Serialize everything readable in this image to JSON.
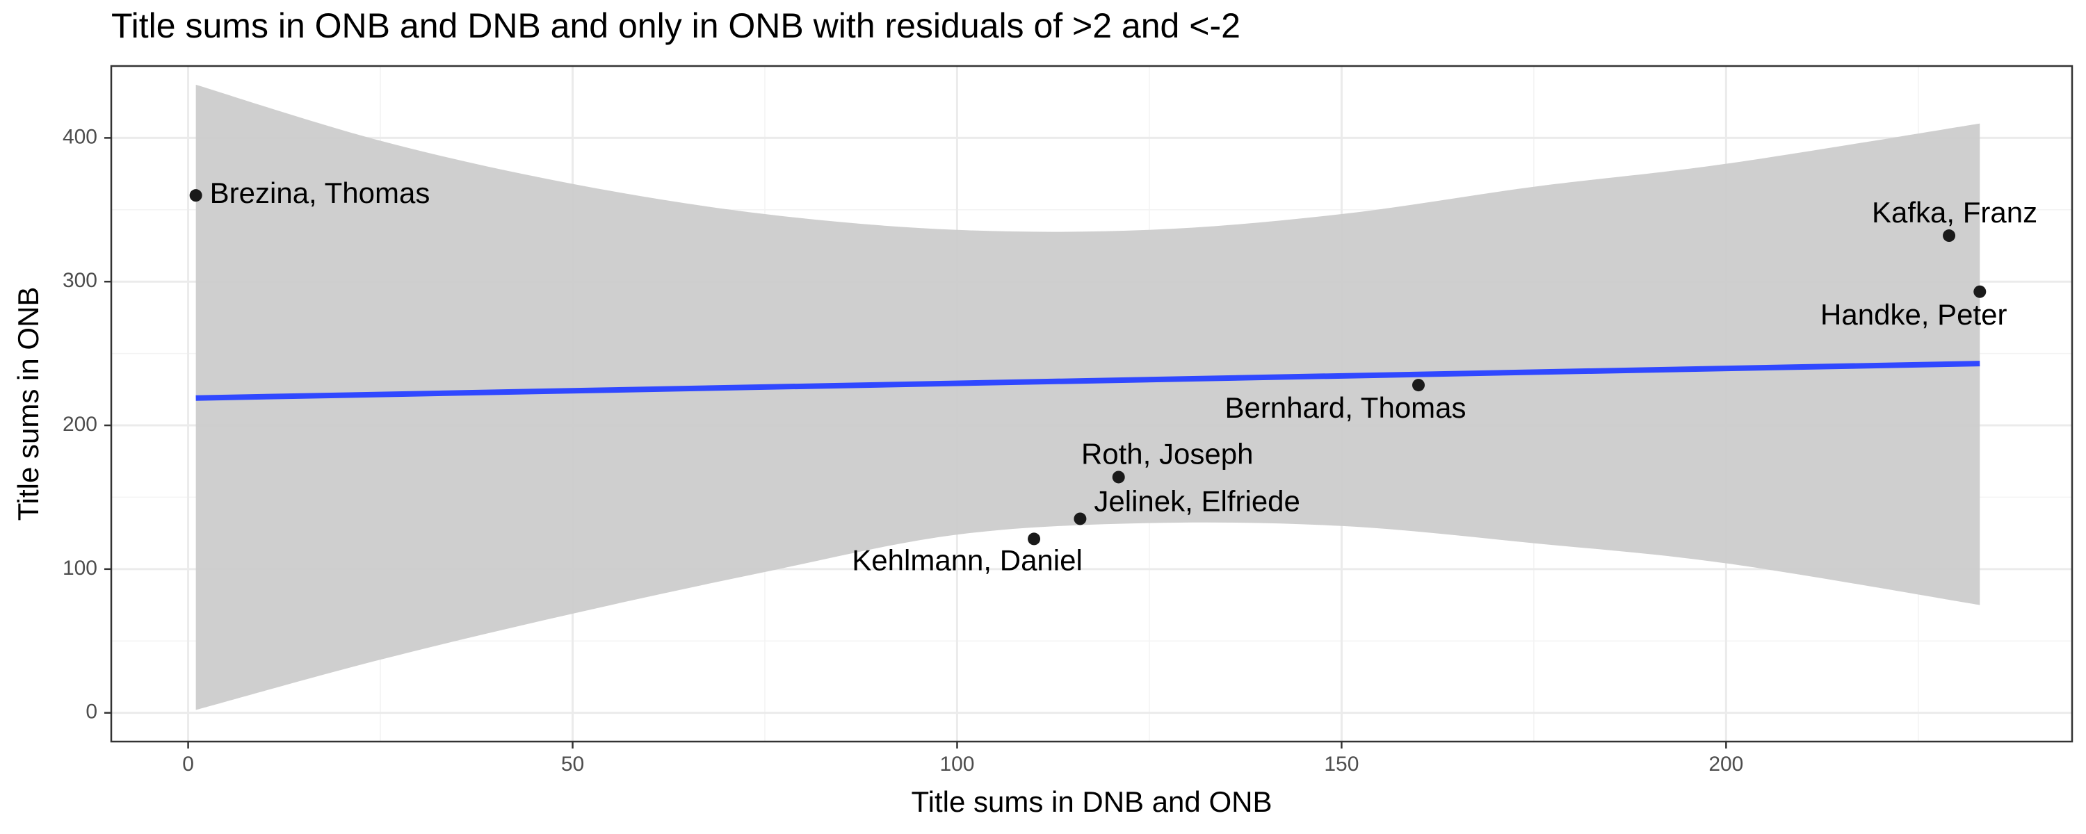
{
  "chart_data": {
    "type": "scatter",
    "title": "Title sums in ONB and DNB and only in ONB with residuals of >2 and <-2",
    "xlabel": "Title sums in DNB and ONB",
    "ylabel": "Title sums in ONB",
    "xlim": [
      -10,
      245
    ],
    "ylim": [
      -20,
      450
    ],
    "x_ticks": [
      0,
      50,
      100,
      150,
      200
    ],
    "y_ticks": [
      0,
      100,
      200,
      300,
      400
    ],
    "grid": true,
    "points": [
      {
        "label": "Brezina, Thomas",
        "x": 1,
        "y": 360
      },
      {
        "label": "Kafka, Franz",
        "x": 229,
        "y": 332
      },
      {
        "label": "Handke, Peter",
        "x": 233,
        "y": 293
      },
      {
        "label": "Bernhard, Thomas",
        "x": 160,
        "y": 228
      },
      {
        "label": "Roth, Joseph",
        "x": 121,
        "y": 164
      },
      {
        "label": "Jelinek, Elfriede",
        "x": 116,
        "y": 135
      },
      {
        "label": "Kehlmann, Daniel",
        "x": 110,
        "y": 121
      }
    ],
    "fit_line": {
      "x": [
        1,
        233
      ],
      "y": [
        219,
        243
      ],
      "color": "#3048ff"
    },
    "confidence_band": {
      "x": [
        1,
        25,
        50,
        75,
        100,
        125,
        150,
        175,
        200,
        233
      ],
      "upper": [
        437,
        398,
        368,
        347,
        336,
        336,
        347,
        366,
        382,
        410
      ],
      "lower": [
        2,
        37,
        69,
        98,
        124,
        132,
        130,
        118,
        104,
        75
      ],
      "color": "#cccccc"
    }
  }
}
